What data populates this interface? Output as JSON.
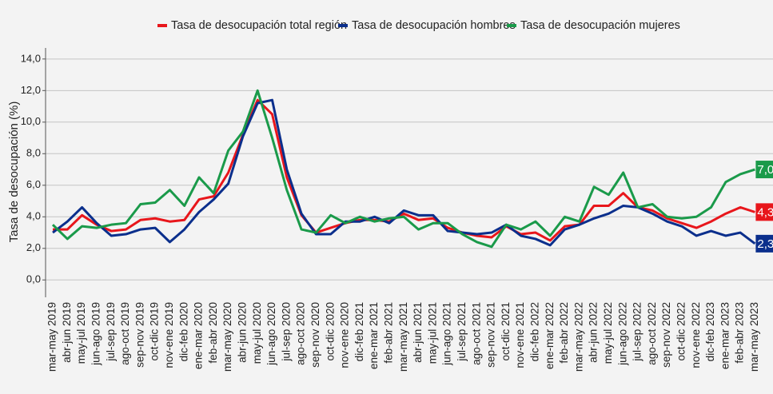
{
  "chart_data": {
    "type": "line",
    "ylabel": "Tasa de desocupación (%)",
    "categories": [
      "mar-may 2019",
      "abr-jun 2019",
      "may-jul 2019",
      "jun-ago 2019",
      "jul-sep 2019",
      "ago-oct 2019",
      "sep-nov 2019",
      "oct-dic 2019",
      "nov-ene 2019",
      "dic-feb 2020",
      "ene-mar 2020",
      "feb-abr 2020",
      "mar-may 2020",
      "abr-jun 2020",
      "may-jul 2020",
      "jun-ago 2020",
      "jul-sep 2020",
      "ago-oct 2020",
      "sep-nov 2020",
      "oct-dic 2020",
      "nov-ene 2020",
      "dic-feb 2021",
      "ene-mar 2021",
      "feb-abr 2021",
      "mar-may 2021",
      "abr-jun 2021",
      "may-jul 2021",
      "jun-ago 2021",
      "jul-sep 2021",
      "ago-oct 2021",
      "sep-nov 2021",
      "oct-dic 2021",
      "nov-ene 2021",
      "dic-feb 2022",
      "ene-mar 2022",
      "feb-abr 2022",
      "mar-may 2022",
      "abr-jun 2022",
      "may-jul 2022",
      "jun-ago 2022",
      "jul-sep 2022",
      "ago-oct 2022",
      "sep-nov 2022",
      "oct-dic 2022",
      "nov-ene 2022",
      "dic-feb 2023",
      "ene-mar 2023",
      "feb-abr 2023",
      "mar-may 2023"
    ],
    "series": [
      {
        "name": "Tasa de desocupación total región",
        "color": "#e8161b",
        "values": [
          3.2,
          3.2,
          4.1,
          3.5,
          3.1,
          3.2,
          3.8,
          3.9,
          3.7,
          3.8,
          5.1,
          5.3,
          6.8,
          9.2,
          11.4,
          10.5,
          6.5,
          4.1,
          3.0,
          3.3,
          3.6,
          3.8,
          3.8,
          3.7,
          4.2,
          3.8,
          3.9,
          3.3,
          3.0,
          2.8,
          2.7,
          3.4,
          2.9,
          3.0,
          2.5,
          3.4,
          3.5,
          4.7,
          4.7,
          5.5,
          4.6,
          4.4,
          3.9,
          3.6,
          3.3,
          3.7,
          4.2,
          4.6,
          4.3
        ],
        "value_labels": [
          null,
          null,
          null,
          null,
          null,
          null,
          null,
          null,
          null,
          null,
          null,
          null,
          null,
          null,
          null,
          null,
          null,
          null,
          null,
          null,
          null,
          null,
          null,
          null,
          null,
          null,
          null,
          null,
          null,
          null,
          null,
          null,
          null,
          null,
          null,
          null,
          null,
          null,
          null,
          null,
          null,
          null,
          null,
          null,
          null,
          null,
          null,
          null,
          "4,3"
        ]
      },
      {
        "name": "Tasa de desocupación hombres",
        "color": "#0b2f8c",
        "values": [
          3.0,
          3.7,
          4.6,
          3.6,
          2.8,
          2.9,
          3.2,
          3.3,
          2.4,
          3.2,
          4.3,
          5.1,
          6.1,
          9.1,
          11.2,
          11.4,
          7.0,
          4.2,
          2.9,
          2.9,
          3.7,
          3.7,
          4.0,
          3.6,
          4.4,
          4.1,
          4.1,
          3.1,
          3.0,
          2.9,
          3.0,
          3.5,
          2.8,
          2.6,
          2.2,
          3.2,
          3.5,
          3.9,
          4.2,
          4.7,
          4.6,
          4.2,
          3.7,
          3.4,
          2.8,
          3.1,
          2.8,
          3.0,
          2.3
        ],
        "value_labels": [
          null,
          null,
          null,
          null,
          null,
          null,
          null,
          null,
          null,
          null,
          null,
          null,
          null,
          null,
          null,
          null,
          null,
          null,
          null,
          null,
          null,
          null,
          null,
          null,
          null,
          null,
          null,
          null,
          null,
          null,
          null,
          null,
          null,
          null,
          null,
          null,
          null,
          null,
          null,
          null,
          null,
          null,
          null,
          null,
          null,
          null,
          null,
          null,
          "2,3"
        ]
      },
      {
        "name": "Tasa de desocupación mujeres",
        "color": "#1a9a4a",
        "values": [
          3.5,
          2.6,
          3.4,
          3.3,
          3.5,
          3.6,
          4.8,
          4.9,
          5.7,
          4.7,
          6.5,
          5.5,
          8.2,
          9.4,
          12.0,
          9.0,
          5.7,
          3.2,
          3.0,
          4.1,
          3.6,
          4.0,
          3.7,
          3.9,
          4.0,
          3.2,
          3.6,
          3.6,
          2.9,
          2.4,
          2.1,
          3.5,
          3.2,
          3.7,
          2.8,
          4.0,
          3.7,
          5.9,
          5.4,
          6.8,
          4.6,
          4.8,
          4.0,
          3.9,
          4.0,
          4.6,
          6.2,
          6.7,
          7.0
        ],
        "value_labels": [
          null,
          null,
          null,
          null,
          null,
          null,
          null,
          null,
          null,
          null,
          null,
          null,
          null,
          null,
          null,
          null,
          null,
          null,
          null,
          null,
          null,
          null,
          null,
          null,
          null,
          null,
          null,
          null,
          null,
          null,
          null,
          null,
          null,
          null,
          null,
          null,
          null,
          null,
          null,
          null,
          null,
          null,
          null,
          null,
          null,
          null,
          null,
          null,
          "7,0"
        ]
      }
    ],
    "ylim": [
      -1.1,
      14.7
    ],
    "yticks": [
      {
        "value": 0,
        "label": "0,0"
      },
      {
        "value": 2,
        "label": "2,0"
      },
      {
        "value": 4,
        "label": "4,0"
      },
      {
        "value": 6,
        "label": "6,0"
      },
      {
        "value": 8,
        "label": "8,0"
      },
      {
        "value": 10,
        "label": "10,0"
      },
      {
        "value": 12,
        "label": "12,0"
      },
      {
        "value": 14,
        "label": "14,0"
      }
    ],
    "grid": true,
    "legend": "top"
  }
}
